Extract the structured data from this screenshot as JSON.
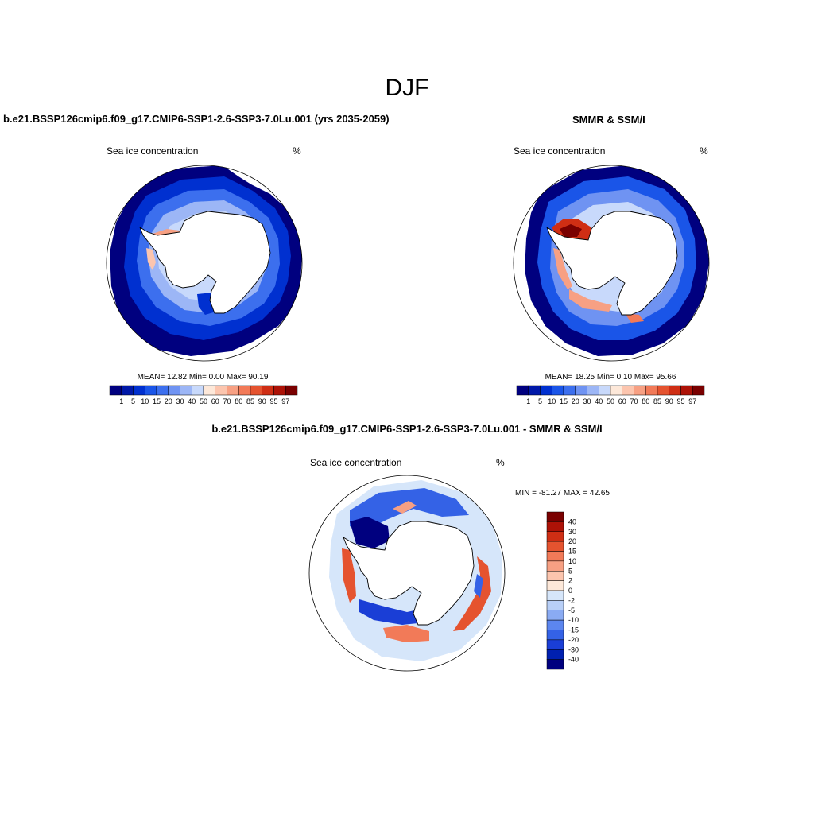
{
  "main_title": "DJF",
  "chart_data": [
    {
      "type": "heatmap",
      "title": "b.e21.BSSP126cmip6.f09_g17.CMIP6-SSP1-2.6-SSP3-7.0Lu.001 (yrs 2035-2059)",
      "left_label": "Sea ice concentration",
      "units": "%",
      "stats": "MEAN=  12.82  Min=   0.00  Max=  90.19",
      "mean": 12.82,
      "min": 0.0,
      "max": 90.19,
      "levels": [
        "1",
        "5",
        "10",
        "15",
        "20",
        "30",
        "40",
        "50",
        "60",
        "70",
        "80",
        "85",
        "90",
        "95",
        "97"
      ],
      "colors": [
        "#00007f",
        "#0018a8",
        "#0030d0",
        "#1a55e8",
        "#3c6fee",
        "#6f93f2",
        "#9cb6f6",
        "#c8d9fb",
        "#fde8d9",
        "#fcc5ae",
        "#f7a083",
        "#f27a58",
        "#e5532f",
        "#cf2e14",
        "#ad1207",
        "#7a0000"
      ]
    },
    {
      "type": "heatmap",
      "title": "SMMR & SSM/I",
      "left_label": "Sea ice concentration",
      "units": "%",
      "stats": "MEAN=  18.25  Min=   0.10  Max=  95.66",
      "mean": 18.25,
      "min": 0.1,
      "max": 95.66,
      "levels": [
        "1",
        "5",
        "10",
        "15",
        "20",
        "30",
        "40",
        "50",
        "60",
        "70",
        "80",
        "85",
        "90",
        "95",
        "97"
      ],
      "colors": [
        "#00007f",
        "#0018a8",
        "#0030d0",
        "#1a55e8",
        "#3c6fee",
        "#6f93f2",
        "#9cb6f6",
        "#c8d9fb",
        "#fde8d9",
        "#fcc5ae",
        "#f7a083",
        "#f27a58",
        "#e5532f",
        "#cf2e14",
        "#ad1207",
        "#7a0000"
      ]
    },
    {
      "type": "heatmap",
      "title": "b.e21.BSSP126cmip6.f09_g17.CMIP6-SSP1-2.6-SSP3-7.0Lu.001 - SMMR & SSM/I",
      "left_label": "Sea ice concentration",
      "units": "%",
      "stats": "MIN = -81.27 MAX =  42.65",
      "min": -81.27,
      "max": 42.65,
      "levels": [
        "40",
        "30",
        "20",
        "15",
        "10",
        "5",
        "2",
        "0",
        "-2",
        "-5",
        "-10",
        "-15",
        "-20",
        "-30",
        "-40"
      ],
      "colors": [
        "#7a0000",
        "#ad1207",
        "#cf2e14",
        "#e5532f",
        "#f27a58",
        "#f7a083",
        "#fcc5ae",
        "#fde8d9",
        "#d6e6fa",
        "#b8cff7",
        "#8aabf3",
        "#5c86ef",
        "#3462e6",
        "#1a3ed6",
        "#0020b0",
        "#00007f"
      ]
    }
  ]
}
